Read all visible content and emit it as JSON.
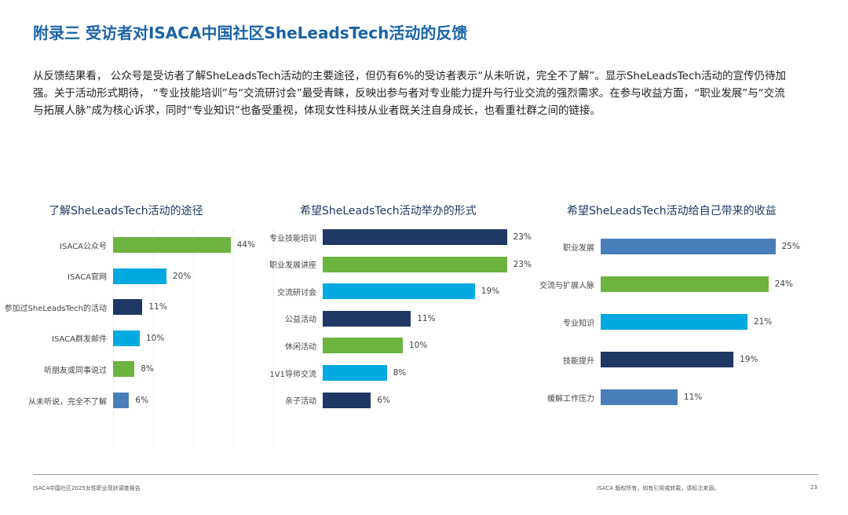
{
  "title": "附录三  受访者对ISACA中国社区SheLeadsTech活动的反馈",
  "intro": "从反馈结果看， 公众号是受访者了解SheLeadsTech活动的主要途径，但仍有6%的受访者表示“从未听说，完全不了解”。显示SheLeadsTech活动的宣传仍待加强。关于活动形式期待， “专业技能培训”与“交流研讨会”最受青睐，反映出参与者对专业能力提升与行业交流的强烈需求。在参与收益方面，“职业发展”与“交流与拓展人脉”成为核心诉求，同时“专业知识”也备受重视，体现女性科技从业者既关注自身成长，也看重社群之间的链接。",
  "chart_data": [
    {
      "type": "bar",
      "title": "了解SheLeadsTech活动的途径",
      "categories": [
        "ISACA公众号",
        "ISACA官网",
        "参加过SheLeadsTech的活动",
        "ISACA群发邮件",
        "听朋友或同事说过",
        "从未听说，完全不了解"
      ],
      "values": [
        44,
        20,
        11,
        10,
        8,
        6
      ],
      "labels": [
        "44%",
        "20%",
        "11%",
        "10%",
        "8%",
        "6%"
      ],
      "colors": [
        "#6db33f",
        "#00a9e0",
        "#1f3864",
        "#00a9e0",
        "#6db33f",
        "#4a7ebb"
      ]
    },
    {
      "type": "bar",
      "title": "希望SheLeadsTech活动举办的形式",
      "categories": [
        "专业技能培训",
        "职业发展讲座",
        "交流研讨会",
        "公益活动",
        "休闲活动",
        "1V1导师交流",
        "亲子活动"
      ],
      "values": [
        23,
        23,
        19,
        11,
        10,
        8,
        6
      ],
      "labels": [
        "23%",
        "23%",
        "19%",
        "11%",
        "10%",
        "8%",
        "6%"
      ],
      "colors": [
        "#1f3864",
        "#6db33f",
        "#00a9e0",
        "#1f3864",
        "#6db33f",
        "#00a9e0",
        "#1f3864"
      ]
    },
    {
      "type": "bar",
      "title": "希望SheLeadsTech活动给自己带来的收益",
      "categories": [
        "职业发展",
        "交流与扩展人脉",
        "专业知识",
        "技能提升",
        "缓解工作压力"
      ],
      "values": [
        25,
        24,
        21,
        19,
        11
      ],
      "labels": [
        "25%",
        "24%",
        "21%",
        "19%",
        "11%"
      ],
      "colors": [
        "#4a7ebb",
        "#6db33f",
        "#00a9e0",
        "#1f3864",
        "#4a7ebb"
      ]
    }
  ],
  "footer": {
    "left": "ISACA中国社区2025女性职业现状调查报告",
    "right": "ISACA 版权所有，如有引用或转载，请标注来源。",
    "page": "23"
  }
}
